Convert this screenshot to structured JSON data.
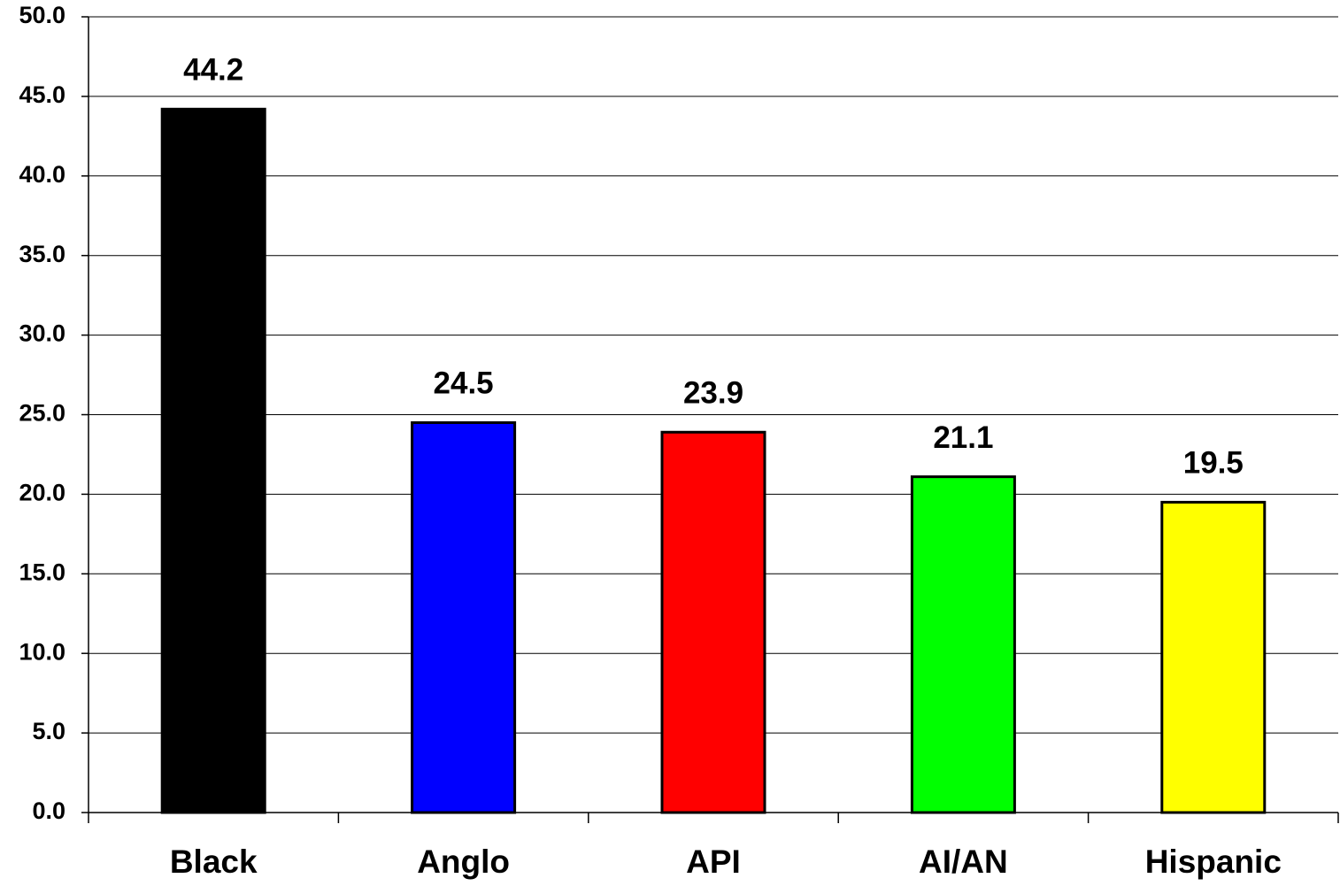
{
  "chart_data": {
    "type": "bar",
    "categories": [
      "Black",
      "Anglo",
      "API",
      "AI/AN",
      "Hispanic"
    ],
    "values": [
      44.2,
      24.5,
      23.9,
      21.1,
      19.5
    ],
    "colors": [
      "#000000",
      "#0000ff",
      "#ff0000",
      "#00ff00",
      "#ffff00"
    ],
    "ylim": [
      0,
      50
    ],
    "yticks": [
      {
        "value": 0,
        "label": "0.0"
      },
      {
        "value": 5,
        "label": "5.0"
      },
      {
        "value": 10,
        "label": "10.0"
      },
      {
        "value": 15,
        "label": "15.0"
      },
      {
        "value": 20,
        "label": "20.0"
      },
      {
        "value": 25,
        "label": "25.0"
      },
      {
        "value": 30,
        "label": "30.0"
      },
      {
        "value": 35,
        "label": "35.0"
      },
      {
        "value": 40,
        "label": "40.0"
      },
      {
        "value": 45,
        "label": "45.0"
      },
      {
        "value": 50,
        "label": "50.0"
      }
    ],
    "grid": true
  }
}
